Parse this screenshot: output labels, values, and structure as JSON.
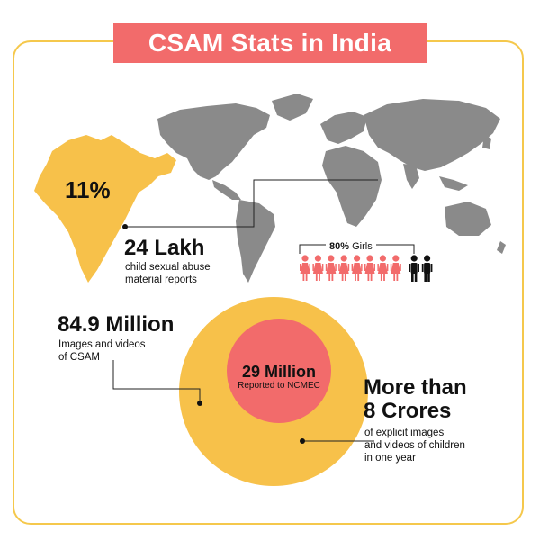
{
  "title": "CSAM Stats in India",
  "india": {
    "percent": "11%"
  },
  "reports": {
    "value": "24 Lakh",
    "description_line1": "child sexual abuse",
    "description_line2": "material reports"
  },
  "girls": {
    "percent": "80%",
    "label": "Girls",
    "girl_count": 8,
    "boy_count": 2
  },
  "csam": {
    "value": "84.9 Million",
    "description_line1": "Images and videos",
    "description_line2": "of CSAM"
  },
  "ncmec": {
    "value": "29 Million",
    "description": "Reported to NCMEC"
  },
  "crores": {
    "value_line1": "More than",
    "value_line2": "8 Crores",
    "description_line1": "of explicit images",
    "description_line2": "and videos of children",
    "description_line3": "in one year"
  },
  "colors": {
    "accent_red": "#f26b6b",
    "accent_yellow": "#f5c84c",
    "map_gray": "#8a8a8a",
    "india_fill": "#f7c14a"
  },
  "icons": [
    "india-map-icon",
    "world-map-icon",
    "girl-figure-icon",
    "boy-figure-icon"
  ]
}
